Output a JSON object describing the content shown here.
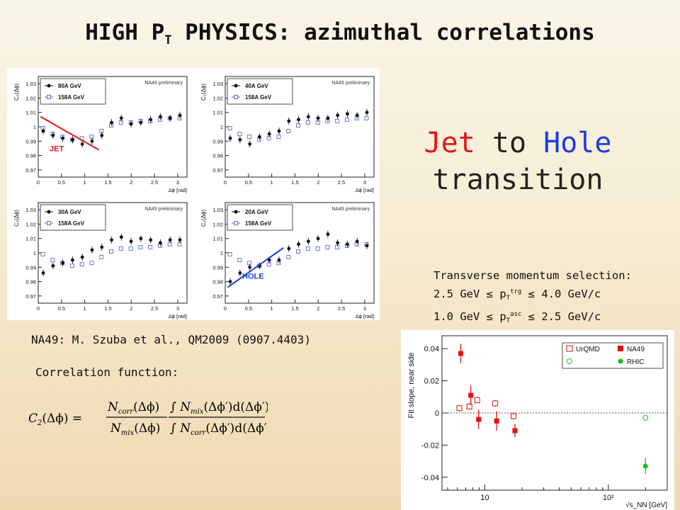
{
  "page": {
    "title_main": "HIGH P",
    "title_sub": "T",
    "title_rest": " PHYSICS: azimuthal correlations",
    "headline_word1": "Jet",
    "headline_word2": "to",
    "headline_word3": "Hole",
    "headline_line2": "transition",
    "selection_title": "Transverse momentum selection:",
    "selection_line1": "2.5 GeV ≤ p",
    "selection_line1_sub": "T",
    "selection_line1_sup": "trg",
    "selection_line1_end": " ≤ 4.0 GeV/c",
    "selection_line2": "1.0 GeV ≤ p",
    "selection_line2_sub": "T",
    "selection_line2_sup": "asc",
    "selection_line2_end": " ≤ 2.5 GeV/c",
    "reference": "NA49: M. Szuba et al., QM2009 (0907.4403)",
    "correlation_label": "Correlation function:",
    "formula_lhs": "C",
    "formula_lhs_sub": "2",
    "formula_lhs_arg": "(Δϕ) =",
    "formula_num1": "N",
    "formula_num1_sub": "corr",
    "formula_num1_arg": "(Δϕ)",
    "formula_den1": "N",
    "formula_den1_sub": "mix",
    "formula_den1_arg": "(Δϕ)",
    "formula_num2": "∫ N",
    "formula_num2_sub": "mix",
    "formula_num2_arg": "(Δϕ′)d(Δϕ′)",
    "formula_den2": "∫ N",
    "formula_den2_sub": "corr",
    "formula_den2_arg": "(Δϕ′)d(Δϕ′)"
  },
  "colors": {
    "jet": "#e01818",
    "hole": "#1a3ce0",
    "na49": "#e01010",
    "rhic": "#18c018",
    "closed_marker": "#111111",
    "open_marker": "#5a6ad8"
  },
  "chart_data": [
    {
      "type": "scatter",
      "panel": "top-left",
      "ylabel": "C₂(Δϕ)",
      "xlabel": "Δϕ [rad]",
      "watermark": "NA49 preliminary",
      "annotation": "JET",
      "xlim": [
        0,
        3.2
      ],
      "ylim": [
        0.965,
        1.035
      ],
      "xticks": [
        "0",
        "0.5",
        "1",
        "1.5",
        "2",
        "2.5",
        "3"
      ],
      "yticks": [
        "0.97",
        "0.98",
        "0.99",
        "1",
        "1.01",
        "1.02",
        "1.03"
      ],
      "legend_position": "top-left",
      "series": [
        {
          "name": "80A GeV",
          "marker": "closed-circle",
          "x": [
            0.1,
            0.31,
            0.52,
            0.73,
            0.94,
            1.15,
            1.36,
            1.57,
            1.78,
            1.99,
            2.2,
            2.41,
            2.62,
            2.83,
            3.04
          ],
          "y": [
            0.997,
            0.994,
            0.992,
            0.991,
            0.988,
            0.99,
            0.994,
            1.003,
            1.006,
            1.002,
            1.003,
            1.005,
            1.007,
            1.006,
            1.008
          ]
        },
        {
          "name": "158A GeV",
          "marker": "open-square",
          "x": [
            0.1,
            0.31,
            0.52,
            0.73,
            0.94,
            1.15,
            1.36,
            1.57,
            1.78,
            1.99,
            2.2,
            2.41,
            2.62,
            2.83,
            3.04
          ],
          "y": [
            0.999,
            0.995,
            0.993,
            0.991,
            0.992,
            0.993,
            0.997,
            1.001,
            1.003,
            1.003,
            1.004,
            1.004,
            1.005,
            1.006,
            1.006
          ]
        }
      ]
    },
    {
      "type": "scatter",
      "panel": "top-right",
      "ylabel": "C₂(Δϕ)",
      "xlabel": "Δϕ [rad]",
      "watermark": "NA49 preliminary",
      "xlim": [
        0,
        3.2
      ],
      "ylim": [
        0.965,
        1.035
      ],
      "xticks": [
        "0",
        "0.5",
        "1",
        "1.5",
        "2",
        "2.5",
        "3"
      ],
      "yticks": [
        "0.97",
        "0.98",
        "0.99",
        "1",
        "1.01",
        "1.02",
        "1.03"
      ],
      "legend_position": "top-left",
      "series": [
        {
          "name": "40A GeV",
          "marker": "closed-circle",
          "x": [
            0.1,
            0.31,
            0.52,
            0.73,
            0.94,
            1.15,
            1.36,
            1.57,
            1.78,
            1.99,
            2.2,
            2.41,
            2.62,
            2.83,
            3.04
          ],
          "y": [
            0.992,
            0.991,
            0.988,
            0.993,
            0.995,
            0.997,
            1.004,
            1.005,
            1.007,
            1.006,
            1.006,
            1.008,
            1.009,
            1.008,
            1.01
          ]
        },
        {
          "name": "158A GeV",
          "marker": "open-square",
          "x": [
            0.1,
            0.31,
            0.52,
            0.73,
            0.94,
            1.15,
            1.36,
            1.57,
            1.78,
            1.99,
            2.2,
            2.41,
            2.62,
            2.83,
            3.04
          ],
          "y": [
            0.999,
            0.995,
            0.993,
            0.991,
            0.992,
            0.993,
            0.997,
            1.001,
            1.003,
            1.003,
            1.004,
            1.004,
            1.005,
            1.006,
            1.006
          ]
        }
      ]
    },
    {
      "type": "scatter",
      "panel": "bottom-left",
      "ylabel": "C₂(Δϕ)",
      "xlabel": "Δϕ [rad]",
      "watermark": "NA49 preliminary",
      "xlim": [
        0,
        3.2
      ],
      "ylim": [
        0.965,
        1.035
      ],
      "xticks": [
        "0",
        "0.5",
        "1",
        "1.5",
        "2",
        "2.5",
        "3"
      ],
      "yticks": [
        "0.97",
        "0.98",
        "0.99",
        "1",
        "1.01",
        "1.02",
        "1.03"
      ],
      "legend_position": "top-left",
      "series": [
        {
          "name": "30A GeV",
          "marker": "closed-circle",
          "x": [
            0.1,
            0.31,
            0.52,
            0.73,
            0.94,
            1.15,
            1.36,
            1.57,
            1.78,
            1.99,
            2.2,
            2.41,
            2.62,
            2.83,
            3.04
          ],
          "y": [
            0.986,
            0.991,
            0.993,
            0.995,
            0.997,
            1.002,
            1.004,
            1.009,
            1.011,
            1.008,
            1.01,
            1.009,
            1.007,
            1.009,
            1.009
          ]
        },
        {
          "name": "158A GeV",
          "marker": "open-square",
          "x": [
            0.1,
            0.31,
            0.52,
            0.73,
            0.94,
            1.15,
            1.36,
            1.57,
            1.78,
            1.99,
            2.2,
            2.41,
            2.62,
            2.83,
            3.04
          ],
          "y": [
            0.999,
            0.995,
            0.993,
            0.991,
            0.992,
            0.993,
            0.997,
            1.001,
            1.003,
            1.003,
            1.004,
            1.004,
            1.005,
            1.006,
            1.006
          ]
        }
      ]
    },
    {
      "type": "scatter",
      "panel": "bottom-right",
      "ylabel": "C₂(Δϕ)",
      "xlabel": "Δϕ [rad]",
      "watermark": "NA49 preliminary",
      "annotation": "HOLE",
      "xlim": [
        0,
        3.2
      ],
      "ylim": [
        0.965,
        1.035
      ],
      "xticks": [
        "0",
        "0.5",
        "1",
        "1.5",
        "2",
        "2.5",
        "3"
      ],
      "yticks": [
        "0.97",
        "0.98",
        "0.99",
        "1",
        "1.01",
        "1.02",
        "1.03"
      ],
      "legend_position": "top-left",
      "series": [
        {
          "name": "20A GeV",
          "marker": "closed-circle",
          "x": [
            0.1,
            0.31,
            0.52,
            0.73,
            0.94,
            1.15,
            1.36,
            1.57,
            1.78,
            1.99,
            2.2,
            2.41,
            2.62,
            2.83,
            3.04
          ],
          "y": [
            0.98,
            0.986,
            0.99,
            0.991,
            0.995,
            0.995,
            1.003,
            1.006,
            1.008,
            1.01,
            1.013,
            1.007,
            1.006,
            1.008,
            1.005
          ]
        },
        {
          "name": "158A GeV",
          "marker": "open-square",
          "x": [
            0.1,
            0.31,
            0.52,
            0.73,
            0.94,
            1.15,
            1.36,
            1.57,
            1.78,
            1.99,
            2.2,
            2.41,
            2.62,
            2.83,
            3.04
          ],
          "y": [
            0.999,
            0.995,
            0.993,
            0.991,
            0.992,
            0.993,
            0.997,
            1.001,
            1.003,
            1.003,
            1.004,
            1.004,
            1.005,
            1.006,
            1.006
          ]
        }
      ]
    },
    {
      "type": "scatter",
      "panel": "fit-slope",
      "ylabel": "Fit slope, near side",
      "xlabel": "√s_NN [GeV]",
      "xscale": "log",
      "xlim": [
        4.5,
        300
      ],
      "ylim": [
        -0.048,
        0.048
      ],
      "xticks": [
        "10",
        "10²"
      ],
      "yticks": [
        "-0.04",
        "-0.02",
        "0",
        "0.02",
        "0.04"
      ],
      "legend_position": "top",
      "series": [
        {
          "name": "UrQMD",
          "marker": "open-square",
          "color": "#e01010",
          "x": [
            6.3,
            7.6,
            8.8,
            12.3,
            17.3
          ],
          "y": [
            0.003,
            0.004,
            0.008,
            0.006,
            -0.002
          ],
          "err": [
            0.002,
            0.002,
            0.002,
            0.002,
            0.002
          ]
        },
        {
          "name": "NA49",
          "marker": "closed-square",
          "color": "#e01010",
          "x": [
            6.3,
            7.6,
            8.8,
            12.3,
            17.3
          ],
          "y": [
            0.037,
            0.011,
            -0.004,
            -0.005,
            -0.011
          ],
          "err": [
            0.006,
            0.006,
            0.006,
            0.006,
            0.004
          ]
        },
        {
          "name": "",
          "marker": "open-circle",
          "color": "#18c018",
          "x": [
            200
          ],
          "y": [
            -0.003
          ],
          "err": [
            0
          ]
        },
        {
          "name": "RHIC",
          "marker": "closed-circle",
          "color": "#18c018",
          "x": [
            200
          ],
          "y": [
            -0.033
          ],
          "err": [
            0.005
          ]
        }
      ]
    }
  ]
}
